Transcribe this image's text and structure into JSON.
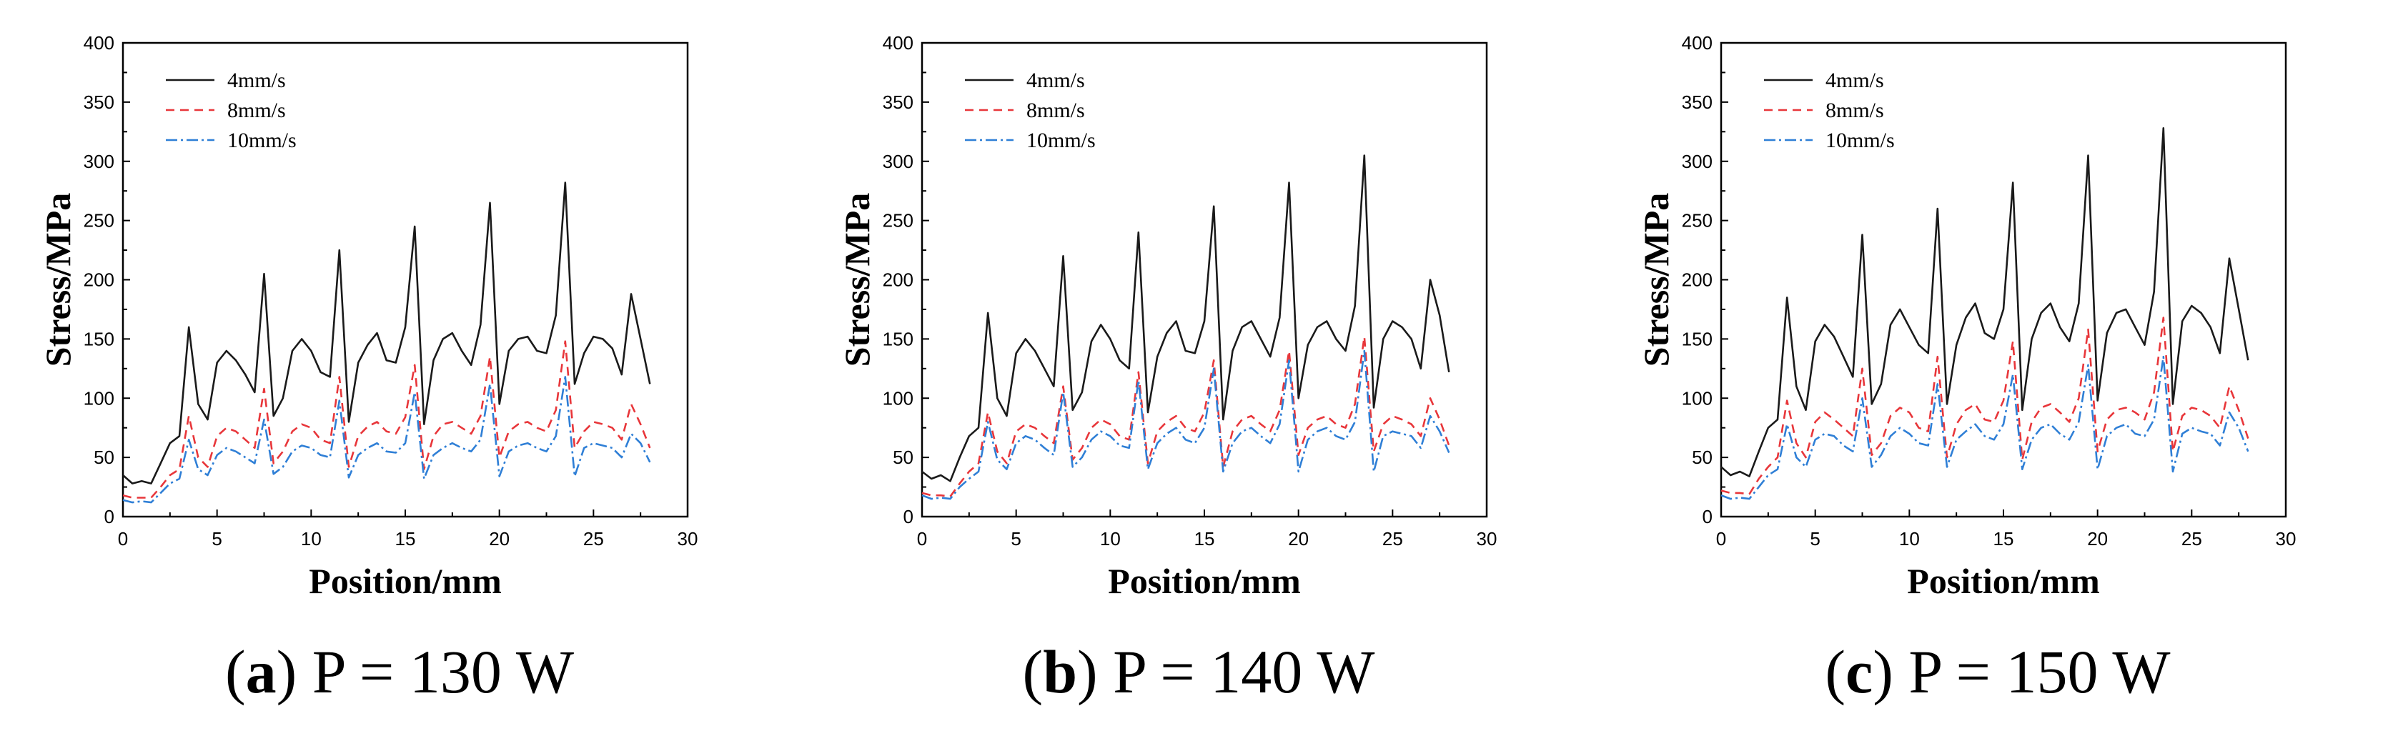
{
  "colors": {
    "series_4": "#1a1a1a",
    "series_8": "#e8363a",
    "series_10": "#2f7fd6"
  },
  "chart_data": [
    {
      "type": "line",
      "caption": {
        "letter": "a",
        "rest": " P = 130 W",
        "open": "(",
        "close": ")"
      },
      "xlabel": "Position/mm",
      "ylabel": "Stress/MPa",
      "xlim": [
        0,
        30
      ],
      "ylim": [
        0,
        400
      ],
      "xticks": [
        "0",
        "5",
        "10",
        "15",
        "20",
        "25",
        "30"
      ],
      "yticks": [
        "0",
        "50",
        "100",
        "150",
        "200",
        "250",
        "300",
        "350",
        "400"
      ],
      "legend_position": "top-left",
      "grid": false,
      "x": [
        0,
        0.5,
        1,
        1.5,
        2,
        2.5,
        3,
        3.5,
        4,
        4.5,
        5,
        5.5,
        6,
        6.5,
        7,
        7.5,
        8,
        8.5,
        9,
        9.5,
        10,
        10.5,
        11,
        11.5,
        12,
        12.5,
        13,
        13.5,
        14,
        14.5,
        15,
        15.5,
        16,
        16.5,
        17,
        17.5,
        18,
        18.5,
        19,
        19.5,
        20,
        20.5,
        21,
        21.5,
        22,
        22.5,
        23,
        23.5,
        24,
        24.5,
        25,
        25.5,
        26,
        26.5,
        27,
        27.5,
        28
      ],
      "series": [
        {
          "name": "4mm/s",
          "color_key": "series_4",
          "dash": "",
          "values": [
            35,
            28,
            30,
            28,
            45,
            62,
            68,
            160,
            95,
            82,
            130,
            140,
            132,
            120,
            105,
            205,
            85,
            100,
            140,
            150,
            140,
            122,
            118,
            225,
            80,
            130,
            145,
            155,
            132,
            130,
            160,
            245,
            78,
            132,
            150,
            155,
            140,
            128,
            162,
            265,
            95,
            140,
            150,
            152,
            140,
            138,
            170,
            282,
            112,
            138,
            152,
            150,
            142,
            120,
            188,
            150,
            112
          ]
        },
        {
          "name": "8mm/s",
          "color_key": "series_8",
          "dash": "12,8",
          "values": [
            18,
            16,
            16,
            16,
            25,
            35,
            40,
            85,
            50,
            42,
            68,
            75,
            72,
            65,
            58,
            108,
            45,
            55,
            72,
            78,
            75,
            65,
            62,
            118,
            42,
            68,
            76,
            80,
            72,
            70,
            84,
            128,
            40,
            68,
            78,
            80,
            75,
            70,
            85,
            135,
            50,
            72,
            78,
            80,
            75,
            72,
            90,
            148,
            58,
            72,
            80,
            78,
            75,
            65,
            95,
            78,
            58
          ]
        },
        {
          "name": "10mm/s",
          "color_key": "series_10",
          "dash": "16,5,3,5",
          "values": [
            14,
            12,
            13,
            12,
            20,
            28,
            32,
            65,
            40,
            35,
            52,
            58,
            55,
            50,
            45,
            82,
            36,
            42,
            55,
            60,
            58,
            52,
            50,
            98,
            33,
            52,
            58,
            62,
            55,
            54,
            62,
            105,
            32,
            52,
            58,
            62,
            58,
            55,
            65,
            112,
            34,
            55,
            60,
            62,
            58,
            55,
            68,
            118,
            34,
            58,
            62,
            60,
            58,
            50,
            70,
            62,
            46
          ]
        }
      ]
    },
    {
      "type": "line",
      "caption": {
        "letter": "b",
        "rest": " P = 140 W",
        "open": "(",
        "close": ")"
      },
      "xlabel": "Position/mm",
      "ylabel": "Stress/MPa",
      "xlim": [
        0,
        30
      ],
      "ylim": [
        0,
        400
      ],
      "xticks": [
        "0",
        "5",
        "10",
        "15",
        "20",
        "25",
        "30"
      ],
      "yticks": [
        "0",
        "50",
        "100",
        "150",
        "200",
        "250",
        "300",
        "350",
        "400"
      ],
      "legend_position": "top-left",
      "grid": false,
      "x": [
        0,
        0.5,
        1,
        1.5,
        2,
        2.5,
        3,
        3.5,
        4,
        4.5,
        5,
        5.5,
        6,
        6.5,
        7,
        7.5,
        8,
        8.5,
        9,
        9.5,
        10,
        10.5,
        11,
        11.5,
        12,
        12.5,
        13,
        13.5,
        14,
        14.5,
        15,
        15.5,
        16,
        16.5,
        17,
        17.5,
        18,
        18.5,
        19,
        19.5,
        20,
        20.5,
        21,
        21.5,
        22,
        22.5,
        23,
        23.5,
        24,
        24.5,
        25,
        25.5,
        26,
        26.5,
        27,
        27.5,
        28
      ],
      "series": [
        {
          "name": "4mm/s",
          "color_key": "series_4",
          "dash": "",
          "values": [
            38,
            32,
            35,
            30,
            50,
            68,
            75,
            172,
            100,
            85,
            138,
            150,
            140,
            125,
            110,
            220,
            90,
            105,
            148,
            162,
            150,
            132,
            125,
            240,
            88,
            135,
            155,
            165,
            140,
            138,
            165,
            262,
            82,
            140,
            160,
            165,
            150,
            135,
            168,
            282,
            100,
            145,
            160,
            165,
            150,
            140,
            178,
            305,
            92,
            150,
            165,
            160,
            150,
            125,
            200,
            170,
            122
          ]
        },
        {
          "name": "8mm/s",
          "color_key": "series_8",
          "dash": "12,8",
          "values": [
            20,
            18,
            18,
            17,
            28,
            38,
            45,
            88,
            55,
            45,
            72,
            78,
            75,
            68,
            62,
            110,
            48,
            58,
            75,
            82,
            78,
            68,
            65,
            122,
            45,
            72,
            80,
            85,
            75,
            72,
            88,
            132,
            42,
            72,
            82,
            85,
            78,
            72,
            90,
            140,
            52,
            75,
            82,
            85,
            78,
            75,
            95,
            152,
            55,
            78,
            85,
            82,
            78,
            68,
            100,
            82,
            60
          ]
        },
        {
          "name": "10mm/s",
          "color_key": "series_10",
          "dash": "16,5,3,5",
          "values": [
            18,
            15,
            16,
            15,
            25,
            32,
            38,
            80,
            48,
            40,
            62,
            68,
            65,
            58,
            52,
            105,
            42,
            50,
            65,
            72,
            68,
            60,
            58,
            115,
            40,
            62,
            70,
            75,
            65,
            62,
            75,
            125,
            38,
            62,
            72,
            75,
            68,
            62,
            78,
            132,
            38,
            65,
            72,
            75,
            68,
            65,
            80,
            140,
            38,
            68,
            72,
            70,
            68,
            58,
            85,
            72,
            54
          ]
        }
      ]
    },
    {
      "type": "line",
      "caption": {
        "letter": "c",
        "rest": " P = 150 W",
        "open": "(",
        "close": ")"
      },
      "xlabel": "Position/mm",
      "ylabel": "Stress/MPa",
      "xlim": [
        0,
        30
      ],
      "ylim": [
        0,
        400
      ],
      "xticks": [
        "0",
        "5",
        "10",
        "15",
        "20",
        "25",
        "30"
      ],
      "yticks": [
        "0",
        "50",
        "100",
        "150",
        "200",
        "250",
        "300",
        "350",
        "400"
      ],
      "legend_position": "top-left",
      "grid": false,
      "x": [
        0,
        0.5,
        1,
        1.5,
        2,
        2.5,
        3,
        3.5,
        4,
        4.5,
        5,
        5.5,
        6,
        6.5,
        7,
        7.5,
        8,
        8.5,
        9,
        9.5,
        10,
        10.5,
        11,
        11.5,
        12,
        12.5,
        13,
        13.5,
        14,
        14.5,
        15,
        15.5,
        16,
        16.5,
        17,
        17.5,
        18,
        18.5,
        19,
        19.5,
        20,
        20.5,
        21,
        21.5,
        22,
        22.5,
        23,
        23.5,
        24,
        24.5,
        25,
        25.5,
        26,
        26.5,
        27,
        27.5,
        28
      ],
      "series": [
        {
          "name": "4mm/s",
          "color_key": "series_4",
          "dash": "",
          "values": [
            42,
            35,
            38,
            34,
            55,
            75,
            82,
            185,
            110,
            90,
            148,
            162,
            152,
            135,
            118,
            238,
            95,
            112,
            162,
            175,
            160,
            145,
            138,
            260,
            95,
            145,
            168,
            180,
            155,
            150,
            175,
            282,
            90,
            150,
            172,
            180,
            160,
            148,
            180,
            305,
            98,
            155,
            172,
            175,
            160,
            145,
            190,
            328,
            95,
            165,
            178,
            172,
            160,
            138,
            218,
            175,
            132
          ]
        },
        {
          "name": "8mm/s",
          "color_key": "series_8",
          "dash": "12,8",
          "values": [
            22,
            20,
            20,
            19,
            32,
            42,
            50,
            98,
            62,
            50,
            80,
            88,
            82,
            75,
            68,
            125,
            52,
            62,
            85,
            92,
            88,
            75,
            72,
            135,
            50,
            78,
            90,
            95,
            82,
            80,
            98,
            148,
            48,
            80,
            92,
            95,
            88,
            80,
            100,
            158,
            55,
            82,
            90,
            92,
            88,
            82,
            105,
            168,
            55,
            85,
            92,
            90,
            85,
            75,
            110,
            90,
            66
          ]
        },
        {
          "name": "10mm/s",
          "color_key": "series_10",
          "dash": "16,5,3,5",
          "values": [
            18,
            15,
            16,
            15,
            25,
            35,
            40,
            78,
            50,
            42,
            65,
            70,
            68,
            60,
            55,
            100,
            42,
            52,
            68,
            75,
            70,
            62,
            60,
            112,
            42,
            65,
            72,
            78,
            68,
            65,
            78,
            120,
            40,
            65,
            75,
            78,
            70,
            65,
            80,
            128,
            40,
            68,
            75,
            78,
            70,
            68,
            82,
            135,
            38,
            70,
            75,
            72,
            70,
            60,
            88,
            75,
            55
          ]
        }
      ]
    }
  ]
}
